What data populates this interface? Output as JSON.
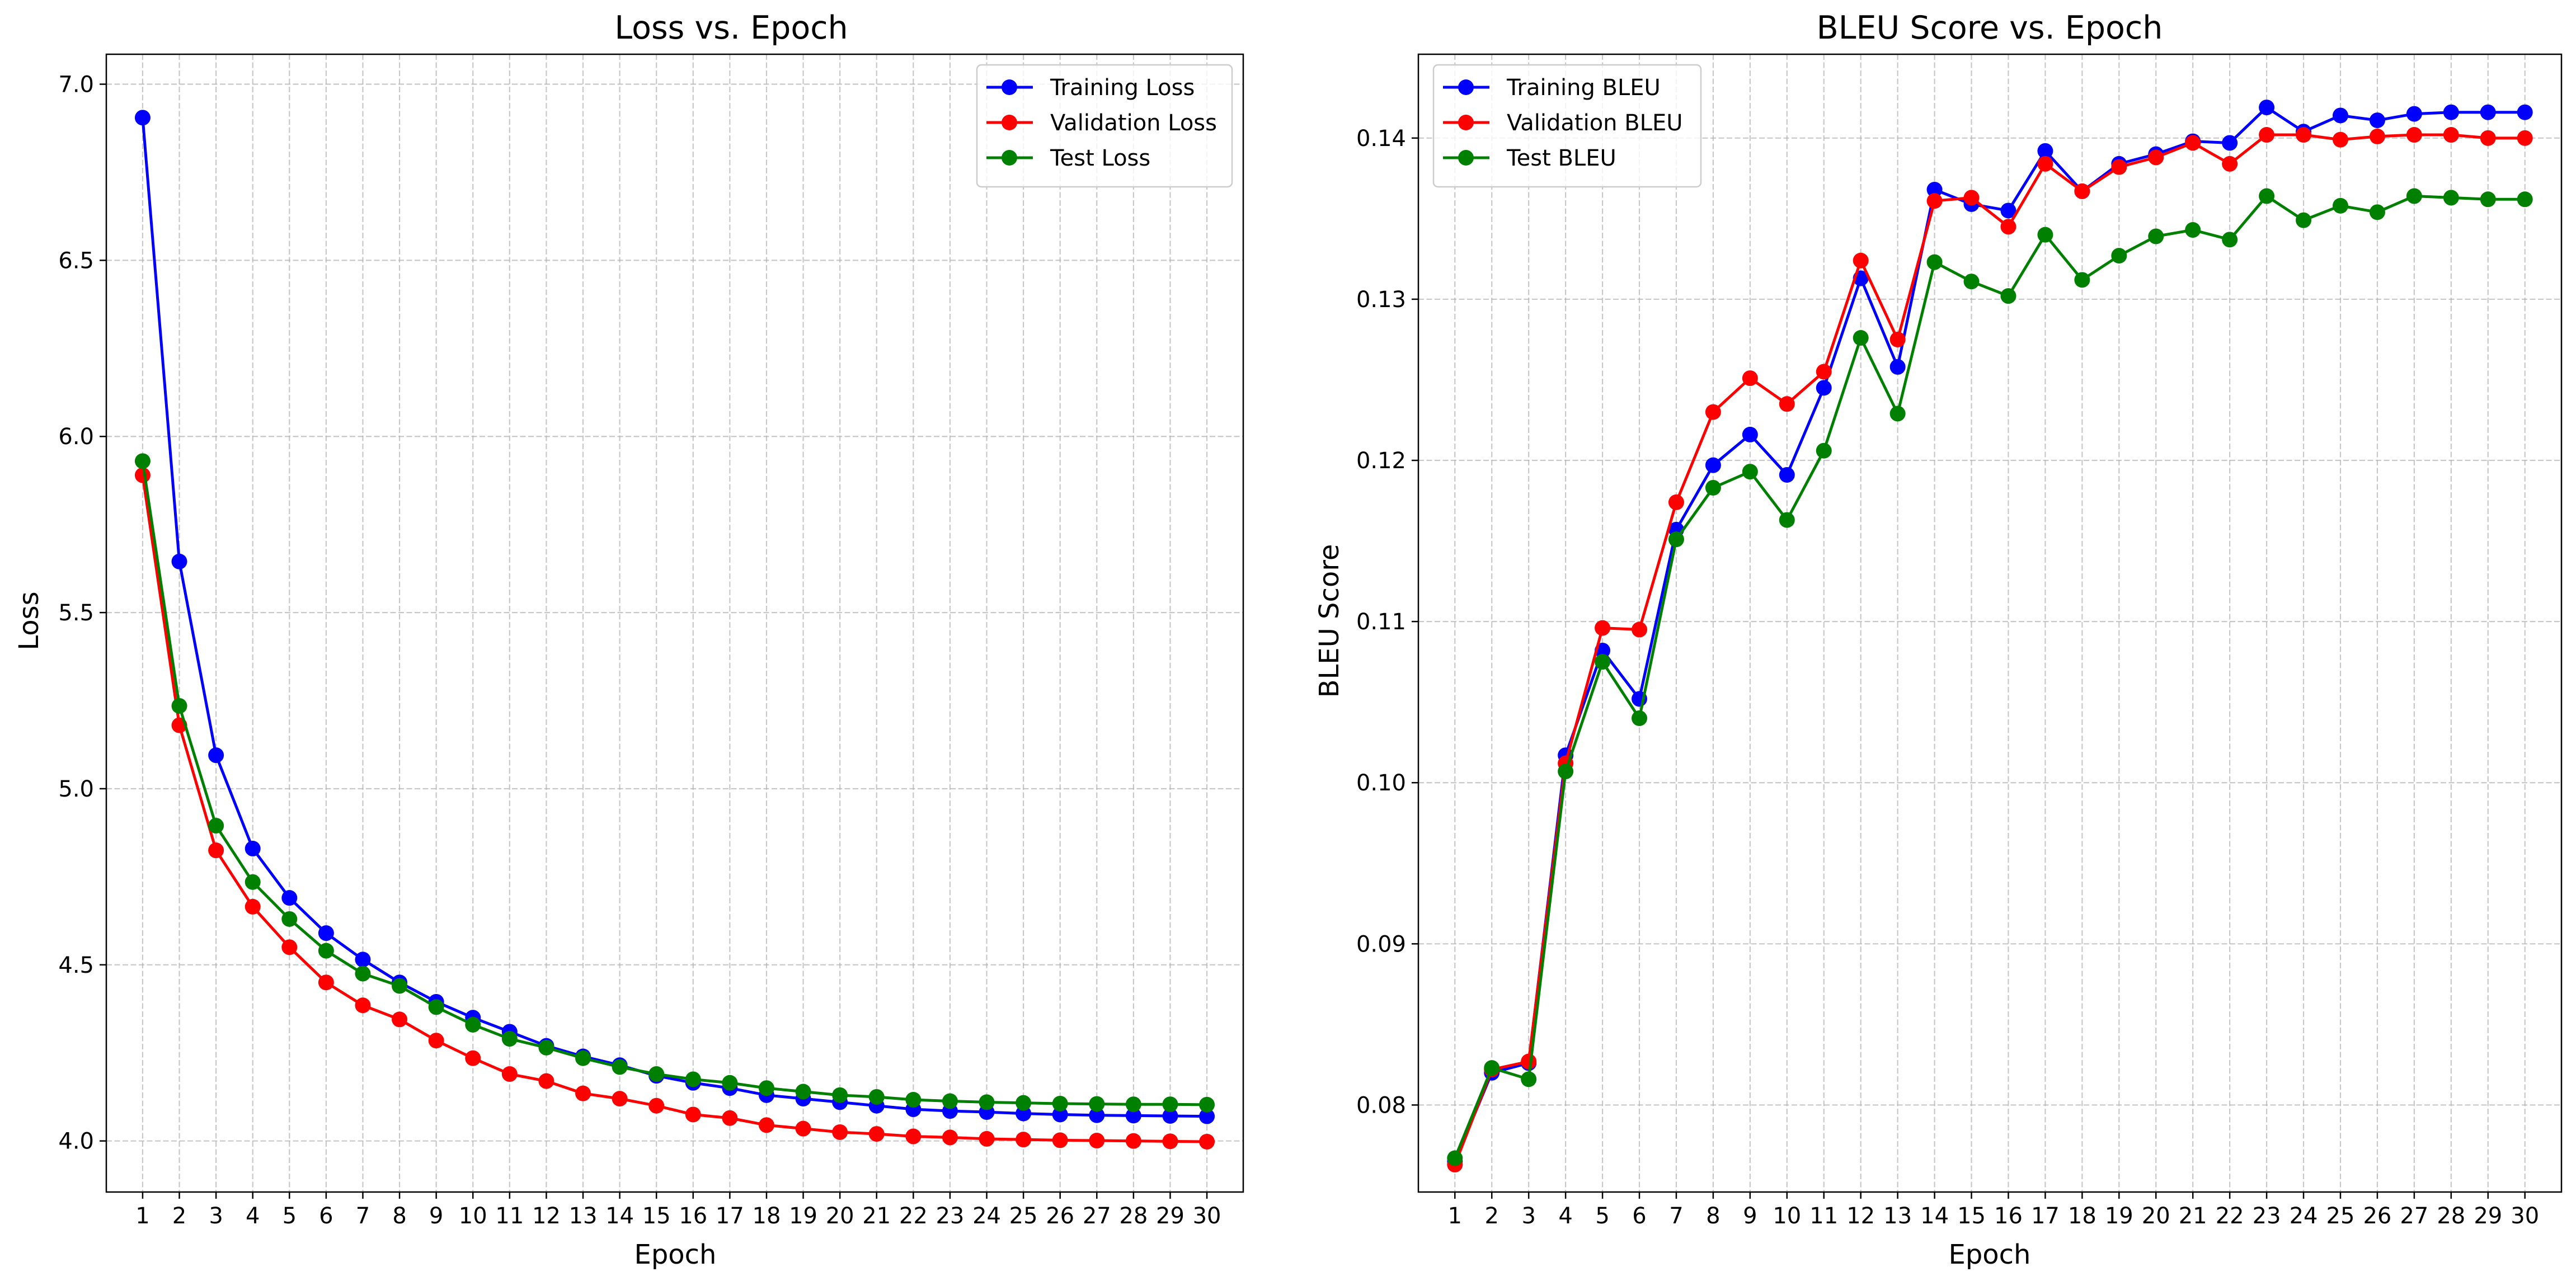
{
  "chart_data": [
    {
      "type": "line",
      "title": "Loss vs. Epoch",
      "xlabel": "Epoch",
      "ylabel": "Loss",
      "x": [
        1,
        2,
        3,
        4,
        5,
        6,
        7,
        8,
        9,
        10,
        11,
        12,
        13,
        14,
        15,
        16,
        17,
        18,
        19,
        20,
        21,
        22,
        23,
        24,
        25,
        26,
        27,
        28,
        29,
        30
      ],
      "xlim": [
        0.01,
        30.99
      ],
      "ylim": [
        3.855,
        7.085
      ],
      "yticks": [
        4.0,
        4.5,
        5.0,
        5.5,
        6.0,
        6.5,
        7.0
      ],
      "ytick_labels": [
        "4.0",
        "4.5",
        "5.0",
        "5.5",
        "6.0",
        "6.5",
        "7.0"
      ],
      "grid": true,
      "legend_position": "upper right",
      "series": [
        {
          "name": "Training Loss",
          "color": "#0000ff",
          "values": [
            6.905,
            5.645,
            5.095,
            4.83,
            4.69,
            4.59,
            4.515,
            4.45,
            4.395,
            4.35,
            4.31,
            4.27,
            4.24,
            4.215,
            4.185,
            4.165,
            4.15,
            4.13,
            4.12,
            4.11,
            4.1,
            4.09,
            4.085,
            4.082,
            4.078,
            4.075,
            4.073,
            4.072,
            4.071,
            4.07
          ]
        },
        {
          "name": "Validation Loss",
          "color": "#ff0000",
          "values": [
            5.89,
            5.18,
            4.825,
            4.665,
            4.55,
            4.45,
            4.385,
            4.345,
            4.285,
            4.235,
            4.19,
            4.17,
            4.135,
            4.12,
            4.1,
            4.075,
            4.065,
            4.045,
            4.035,
            4.025,
            4.02,
            4.013,
            4.01,
            4.006,
            4.004,
            4.002,
            4.001,
            4.0,
            3.999,
            3.998
          ]
        },
        {
          "name": "Test Loss",
          "color": "#008000",
          "values": [
            5.93,
            5.235,
            4.895,
            4.735,
            4.63,
            4.54,
            4.475,
            4.44,
            4.38,
            4.33,
            4.29,
            4.265,
            4.235,
            4.21,
            4.19,
            4.175,
            4.165,
            4.15,
            4.14,
            4.13,
            4.125,
            4.117,
            4.113,
            4.11,
            4.108,
            4.106,
            4.105,
            4.104,
            4.104,
            4.103
          ]
        }
      ]
    },
    {
      "type": "line",
      "title": "BLEU Score vs. Epoch",
      "xlabel": "Epoch",
      "ylabel": "BLEU Score",
      "x": [
        1,
        2,
        3,
        4,
        5,
        6,
        7,
        8,
        9,
        10,
        11,
        12,
        13,
        14,
        15,
        16,
        17,
        18,
        19,
        20,
        21,
        22,
        23,
        24,
        25,
        26,
        27,
        28,
        29,
        30
      ],
      "xlim": [
        0.01,
        30.99
      ],
      "ylim": [
        0.0746,
        0.1452
      ],
      "yticks": [
        0.08,
        0.09,
        0.1,
        0.11,
        0.12,
        0.13,
        0.14
      ],
      "ytick_labels": [
        "0.08",
        "0.09",
        "0.10",
        "0.11",
        "0.12",
        "0.13",
        "0.14"
      ],
      "grid": true,
      "legend_position": "upper left",
      "series": [
        {
          "name": "Training BLEU",
          "color": "#0000ff",
          "values": [
            0.0765,
            0.082,
            0.0826,
            0.1017,
            0.1082,
            0.1052,
            0.1157,
            0.1197,
            0.1216,
            0.1191,
            0.1245,
            0.1313,
            0.1258,
            0.1368,
            0.1359,
            0.1355,
            0.1392,
            0.1367,
            0.1384,
            0.139,
            0.1398,
            0.1397,
            0.1419,
            0.1404,
            0.1414,
            0.1411,
            0.1415,
            0.1416,
            0.1416,
            0.1416
          ]
        },
        {
          "name": "Validation BLEU",
          "color": "#ff0000",
          "values": [
            0.0763,
            0.0822,
            0.0827,
            0.1012,
            0.1096,
            0.1095,
            0.1174,
            0.123,
            0.1251,
            0.1235,
            0.1255,
            0.1324,
            0.1275,
            0.1361,
            0.1363,
            0.1345,
            0.1384,
            0.1367,
            0.1382,
            0.1388,
            0.1397,
            0.1384,
            0.1402,
            0.1402,
            0.1399,
            0.1401,
            0.1402,
            0.1402,
            0.14,
            0.14
          ]
        },
        {
          "name": "Test BLEU",
          "color": "#008000",
          "values": [
            0.0767,
            0.0823,
            0.0816,
            0.1007,
            0.1075,
            0.104,
            0.1151,
            0.1183,
            0.1193,
            0.1163,
            0.1206,
            0.1276,
            0.1229,
            0.1323,
            0.1311,
            0.1302,
            0.134,
            0.1312,
            0.1327,
            0.1339,
            0.1343,
            0.1337,
            0.1364,
            0.1349,
            0.1358,
            0.1354,
            0.1364,
            0.1363,
            0.1362,
            0.1362
          ]
        }
      ]
    }
  ]
}
